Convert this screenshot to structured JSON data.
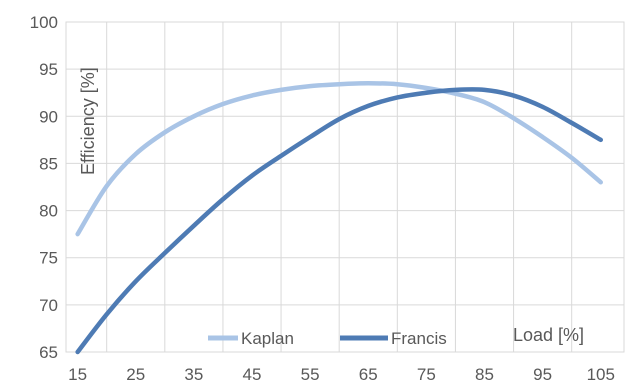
{
  "chart_data": {
    "type": "line",
    "title": "",
    "xlabel": "Load [%]",
    "ylabel": "Efficiency [%]",
    "x_ticks": [
      15,
      25,
      35,
      45,
      55,
      65,
      75,
      85,
      95,
      105
    ],
    "y_ticks": [
      65,
      70,
      75,
      80,
      85,
      90,
      95,
      100
    ],
    "xlim": [
      13,
      109
    ],
    "ylim": [
      65,
      100
    ],
    "grid": true,
    "legend_position": "bottom-center",
    "series": [
      {
        "name": "Kaplan",
        "color": "#A9C4E6",
        "x": [
          15,
          20,
          25,
          30,
          35,
          40,
          45,
          50,
          55,
          60,
          65,
          70,
          75,
          80,
          85,
          90,
          95,
          100,
          105
        ],
        "y": [
          77.5,
          82.6,
          86.0,
          88.3,
          90.0,
          91.3,
          92.2,
          92.8,
          93.2,
          93.4,
          93.5,
          93.4,
          93.0,
          92.4,
          91.5,
          89.8,
          87.8,
          85.6,
          83.0
        ]
      },
      {
        "name": "Francis",
        "color": "#4E7BB4",
        "x": [
          15,
          20,
          25,
          30,
          35,
          40,
          45,
          50,
          55,
          60,
          65,
          70,
          75,
          80,
          85,
          90,
          95,
          100,
          105
        ],
        "y": [
          65.0,
          69.0,
          72.5,
          75.5,
          78.4,
          81.2,
          83.7,
          85.8,
          87.8,
          89.7,
          91.1,
          92.0,
          92.5,
          92.8,
          92.8,
          92.2,
          91.0,
          89.3,
          87.5
        ]
      }
    ]
  }
}
